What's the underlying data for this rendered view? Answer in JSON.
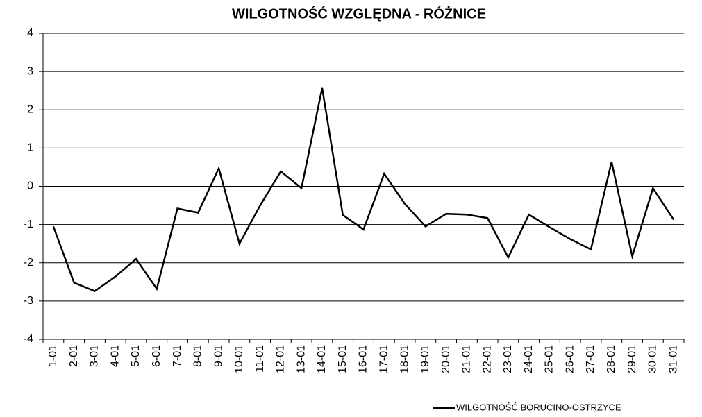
{
  "chart_data": {
    "type": "line",
    "title": "WILGOTNOŚĆ WZGLĘDNA - RÓŻNICE",
    "categories": [
      "1-01",
      "2-01",
      "3-01",
      "4-01",
      "5-01",
      "6-01",
      "7-01",
      "8-01",
      "9-01",
      "10-01",
      "11-01",
      "12-01",
      "13-01",
      "14-01",
      "15-01",
      "16-01",
      "17-01",
      "18-01",
      "19-01",
      "20-01",
      "21-01",
      "22-01",
      "23-01",
      "24-01",
      "25-01",
      "26-01",
      "27-01",
      "28-01",
      "29-01",
      "30-01",
      "31-01"
    ],
    "series": [
      {
        "name": "WILGOTNOŚĆ BORUCINO-OSTRZYCE",
        "color": "#000000",
        "values": [
          -1.05,
          -2.52,
          -2.74,
          -2.36,
          -1.9,
          -2.68,
          -0.58,
          -0.69,
          0.47,
          -1.5,
          -0.5,
          0.39,
          -0.05,
          2.57,
          -0.75,
          -1.13,
          0.33,
          -0.46,
          -1.05,
          -0.72,
          -0.74,
          -0.83,
          -1.86,
          -0.74,
          -1.07,
          -1.38,
          -1.65,
          0.64,
          -1.83,
          -0.05,
          -0.87
        ]
      }
    ],
    "ylim": [
      -4,
      4
    ],
    "yticks": [
      -4,
      -3,
      -2,
      -1,
      0,
      1,
      2,
      3,
      4
    ],
    "grid": true,
    "legend": "bottom-right"
  }
}
